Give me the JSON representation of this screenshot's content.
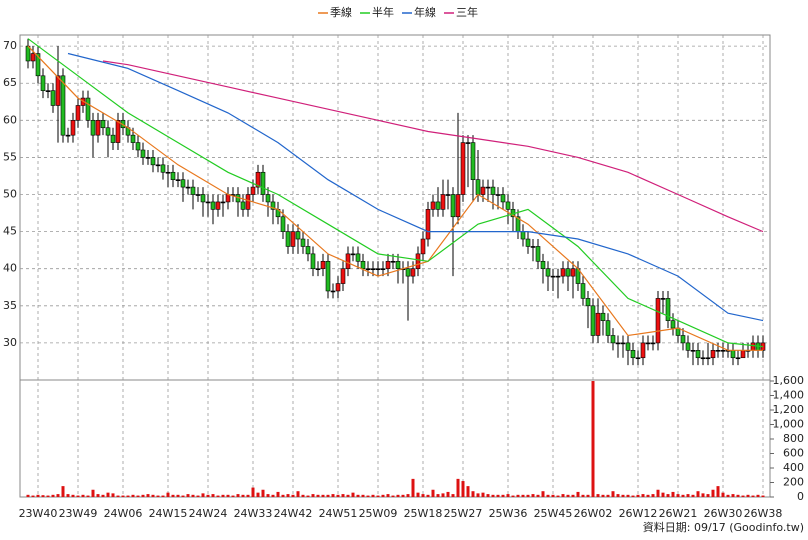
{
  "chart_data": {
    "type": "candlestick",
    "series": [
      {
        "name": "季線",
        "color": "#e8781e",
        "x": [
          0,
          10,
          20,
          30,
          40,
          50,
          60,
          70,
          80,
          90,
          100,
          110,
          120,
          130,
          140,
          147
        ],
        "values": [
          70,
          63,
          59,
          54,
          50,
          48,
          42,
          39,
          41,
          50,
          46,
          40,
          31,
          32,
          29,
          29
        ]
      },
      {
        "name": "半年",
        "color": "#22cc22",
        "x": [
          0,
          10,
          20,
          30,
          40,
          50,
          60,
          70,
          80,
          90,
          100,
          110,
          120,
          130,
          140,
          147
        ],
        "values": [
          71,
          66,
          61,
          57,
          53,
          50,
          46,
          42,
          41,
          46,
          48,
          43,
          36,
          33,
          30,
          29.5
        ]
      },
      {
        "name": "年線",
        "color": "#2266cc",
        "x": [
          8,
          20,
          30,
          40,
          50,
          60,
          70,
          80,
          90,
          100,
          110,
          120,
          130,
          140,
          147
        ],
        "values": [
          69,
          67,
          64,
          61,
          57,
          52,
          48,
          45,
          45,
          45,
          44,
          42,
          39,
          34,
          33
        ]
      },
      {
        "name": "三年",
        "color": "#d0207a",
        "x": [
          15,
          20,
          30,
          40,
          50,
          60,
          70,
          80,
          90,
          100,
          110,
          120,
          130,
          140,
          147
        ],
        "values": [
          68,
          67.5,
          66,
          64.5,
          63,
          61.5,
          60,
          58.5,
          57.5,
          56.5,
          55,
          53,
          50,
          47,
          45
        ]
      }
    ],
    "candles": {
      "open": [
        70,
        68,
        69,
        66,
        64,
        64,
        62,
        66,
        58,
        58,
        60,
        62,
        63,
        60,
        58,
        60,
        59,
        58,
        57,
        60,
        59,
        58,
        57,
        56,
        55,
        55,
        54,
        54,
        53,
        53,
        52,
        52,
        51,
        51,
        50,
        50,
        49,
        49,
        48,
        49,
        49,
        50,
        50,
        49,
        48,
        50,
        51,
        53,
        50,
        49,
        48,
        47,
        45,
        43,
        45,
        44,
        43,
        42,
        40,
        40,
        41,
        37,
        37,
        38,
        40,
        42,
        42,
        41,
        40,
        40,
        40,
        40,
        40,
        41,
        41,
        40,
        40,
        39,
        40,
        42,
        44,
        48,
        49,
        48,
        50,
        50,
        47,
        50,
        57,
        57,
        52,
        50,
        51,
        51,
        50,
        50,
        49,
        48,
        47,
        45,
        44,
        43,
        43,
        41,
        40,
        39,
        39,
        39,
        40,
        39,
        40,
        38,
        36,
        35,
        31,
        34,
        33,
        31,
        30,
        30,
        30,
        29,
        28,
        28,
        30,
        30,
        30,
        36,
        36,
        33,
        32,
        31,
        30,
        29,
        29,
        28,
        28,
        28,
        29,
        29,
        29,
        29,
        28,
        28,
        29,
        29,
        30,
        29
      ],
      "high": [
        71,
        70,
        70,
        67,
        65,
        65,
        70,
        67,
        59,
        61,
        63,
        64,
        64,
        61,
        61,
        61,
        60,
        59,
        61,
        61,
        60,
        59,
        58,
        57,
        56,
        56,
        55,
        55,
        54,
        54,
        53,
        53,
        52,
        52,
        51,
        51,
        50,
        50,
        50,
        50,
        51,
        51,
        51,
        50,
        51,
        52,
        54,
        54,
        51,
        50,
        49,
        48,
        46,
        46,
        46,
        45,
        44,
        43,
        41,
        42,
        42,
        38,
        39,
        41,
        43,
        43,
        43,
        42,
        41,
        41,
        41,
        41,
        42,
        42,
        42,
        41,
        41,
        41,
        43,
        45,
        49,
        50,
        51,
        52,
        52,
        51,
        61,
        58,
        58,
        58,
        56,
        52,
        52,
        52,
        51,
        51,
        50,
        49,
        48,
        46,
        45,
        44,
        44,
        42,
        41,
        40,
        40,
        41,
        41,
        41,
        41,
        39,
        37,
        36,
        36,
        35,
        34,
        32,
        31,
        31,
        31,
        30,
        29,
        31,
        31,
        31,
        37,
        37,
        37,
        34,
        33,
        32,
        31,
        30,
        30,
        29,
        30,
        30,
        30,
        30,
        30,
        30,
        29,
        30,
        30,
        31,
        31,
        31
      ],
      "low": [
        67,
        67,
        65,
        63,
        63,
        61,
        57,
        57,
        57,
        57,
        59,
        61,
        59,
        55,
        57,
        58,
        55,
        56,
        56,
        58,
        57,
        56,
        55,
        54,
        54,
        53,
        53,
        52,
        51,
        51,
        51,
        49,
        50,
        48,
        49,
        47,
        47,
        46,
        47,
        47,
        48,
        49,
        47,
        47,
        47,
        49,
        50,
        49,
        47,
        46,
        46,
        44,
        42,
        42,
        42,
        42,
        41,
        39,
        39,
        39,
        36,
        36,
        36,
        37,
        39,
        41,
        40,
        39,
        39,
        39,
        39,
        39,
        39,
        40,
        38,
        38,
        33,
        38,
        39,
        41,
        43,
        47,
        47,
        47,
        48,
        39,
        46,
        49,
        51,
        49,
        49,
        49,
        49,
        48,
        48,
        48,
        46,
        45,
        44,
        43,
        42,
        41,
        40,
        38,
        37,
        37,
        36,
        38,
        37,
        36,
        37,
        35,
        32,
        30,
        30,
        31,
        30,
        29,
        28,
        28,
        27,
        27,
        27,
        27,
        29,
        29,
        29,
        34,
        32,
        31,
        30,
        29,
        28,
        27,
        27,
        27,
        27,
        27,
        28,
        28,
        28,
        27,
        27,
        28,
        28,
        28,
        28,
        28
      ],
      "close": [
        68,
        69,
        66,
        64,
        64,
        62,
        66,
        58,
        58,
        60,
        62,
        63,
        60,
        58,
        60,
        59,
        58,
        57,
        60,
        59,
        58,
        57,
        56,
        55,
        55,
        54,
        54,
        53,
        53,
        52,
        52,
        51,
        51,
        50,
        50,
        49,
        49,
        48,
        49,
        49,
        50,
        50,
        49,
        48,
        50,
        51,
        53,
        50,
        49,
        48,
        47,
        45,
        43,
        45,
        44,
        43,
        42,
        40,
        40,
        41,
        37,
        37,
        38,
        40,
        42,
        42,
        41,
        40,
        40,
        40,
        40,
        40,
        41,
        41,
        40,
        40,
        39,
        40,
        42,
        44,
        48,
        49,
        48,
        50,
        50,
        47,
        50,
        57,
        57,
        52,
        50,
        51,
        51,
        50,
        50,
        49,
        48,
        47,
        45,
        44,
        43,
        43,
        41,
        40,
        39,
        39,
        39,
        40,
        39,
        40,
        38,
        36,
        35,
        31,
        34,
        33,
        31,
        30,
        30,
        30,
        29,
        28,
        28,
        30,
        30,
        30,
        36,
        36,
        33,
        32,
        31,
        30,
        29,
        29,
        28,
        28,
        28,
        29,
        29,
        29,
        29,
        28,
        28,
        29,
        29,
        30,
        29,
        30
      ],
      "up_color": "#ee1111",
      "down_color": "#22bb22"
    },
    "volume": {
      "color": "#dd1111",
      "values": [
        30,
        20,
        30,
        25,
        20,
        30,
        40,
        150,
        40,
        30,
        20,
        30,
        20,
        100,
        40,
        30,
        60,
        50,
        20,
        20,
        20,
        30,
        20,
        30,
        40,
        30,
        20,
        20,
        60,
        30,
        30,
        20,
        40,
        30,
        20,
        50,
        30,
        40,
        20,
        30,
        30,
        20,
        40,
        30,
        30,
        130,
        60,
        100,
        40,
        30,
        70,
        30,
        40,
        30,
        80,
        30,
        20,
        40,
        30,
        30,
        30,
        40,
        30,
        40,
        30,
        60,
        30,
        30,
        20,
        30,
        20,
        30,
        40,
        20,
        30,
        30,
        40,
        250,
        60,
        40,
        30,
        100,
        40,
        50,
        70,
        40,
        250,
        220,
        150,
        80,
        50,
        60,
        40,
        30,
        30,
        30,
        40,
        20,
        30,
        30,
        30,
        40,
        30,
        80,
        30,
        30,
        20,
        40,
        30,
        30,
        70,
        30,
        30,
        1600,
        40,
        30,
        30,
        80,
        40,
        30,
        30,
        20,
        30,
        40,
        30,
        40,
        100,
        60,
        40,
        70,
        40,
        30,
        40,
        30,
        80,
        50,
        40,
        100,
        150,
        60,
        30,
        40,
        30,
        20,
        30,
        20,
        30,
        20
      ],
      "ylim": [
        0,
        1600
      ],
      "yticks": [
        0,
        200,
        400,
        600,
        800,
        {
          "value": 1000,
          "label": "1,000"
        },
        {
          "value": 1200,
          "label": "1,200"
        },
        {
          "value": 1400,
          "label": "1,400"
        },
        {
          "value": 1600,
          "label": "1,600"
        }
      ]
    },
    "ylim": [
      25,
      71.5
    ],
    "yticks": [
      30,
      35,
      40,
      45,
      50,
      55,
      60,
      65,
      70
    ],
    "xlim": [
      0,
      147
    ],
    "xticks": [
      {
        "value": 2,
        "label": "23W40"
      },
      {
        "value": 10,
        "label": "23W49"
      },
      {
        "value": 19,
        "label": "24W06"
      },
      {
        "value": 28,
        "label": "24W15"
      },
      {
        "value": 36,
        "label": "24W24"
      },
      {
        "value": 45,
        "label": "24W33"
      },
      {
        "value": 53,
        "label": "24W42"
      },
      {
        "value": 62,
        "label": "24W51"
      },
      {
        "value": 70,
        "label": "25W09"
      },
      {
        "value": 79,
        "label": "25W18"
      },
      {
        "value": 87,
        "label": "25W27"
      },
      {
        "value": 96,
        "label": "25W36"
      },
      {
        "value": 105,
        "label": "25W45"
      },
      {
        "value": 113,
        "label": "26W02"
      },
      {
        "value": 122,
        "label": "26W12"
      },
      {
        "value": 130,
        "label": "26W21"
      },
      {
        "value": 139,
        "label": "26W30"
      },
      {
        "value": 147,
        "label": "26W38"
      }
    ],
    "grid": true,
    "note": "資料日期: 09/17  (Goodinfo.tw)"
  }
}
